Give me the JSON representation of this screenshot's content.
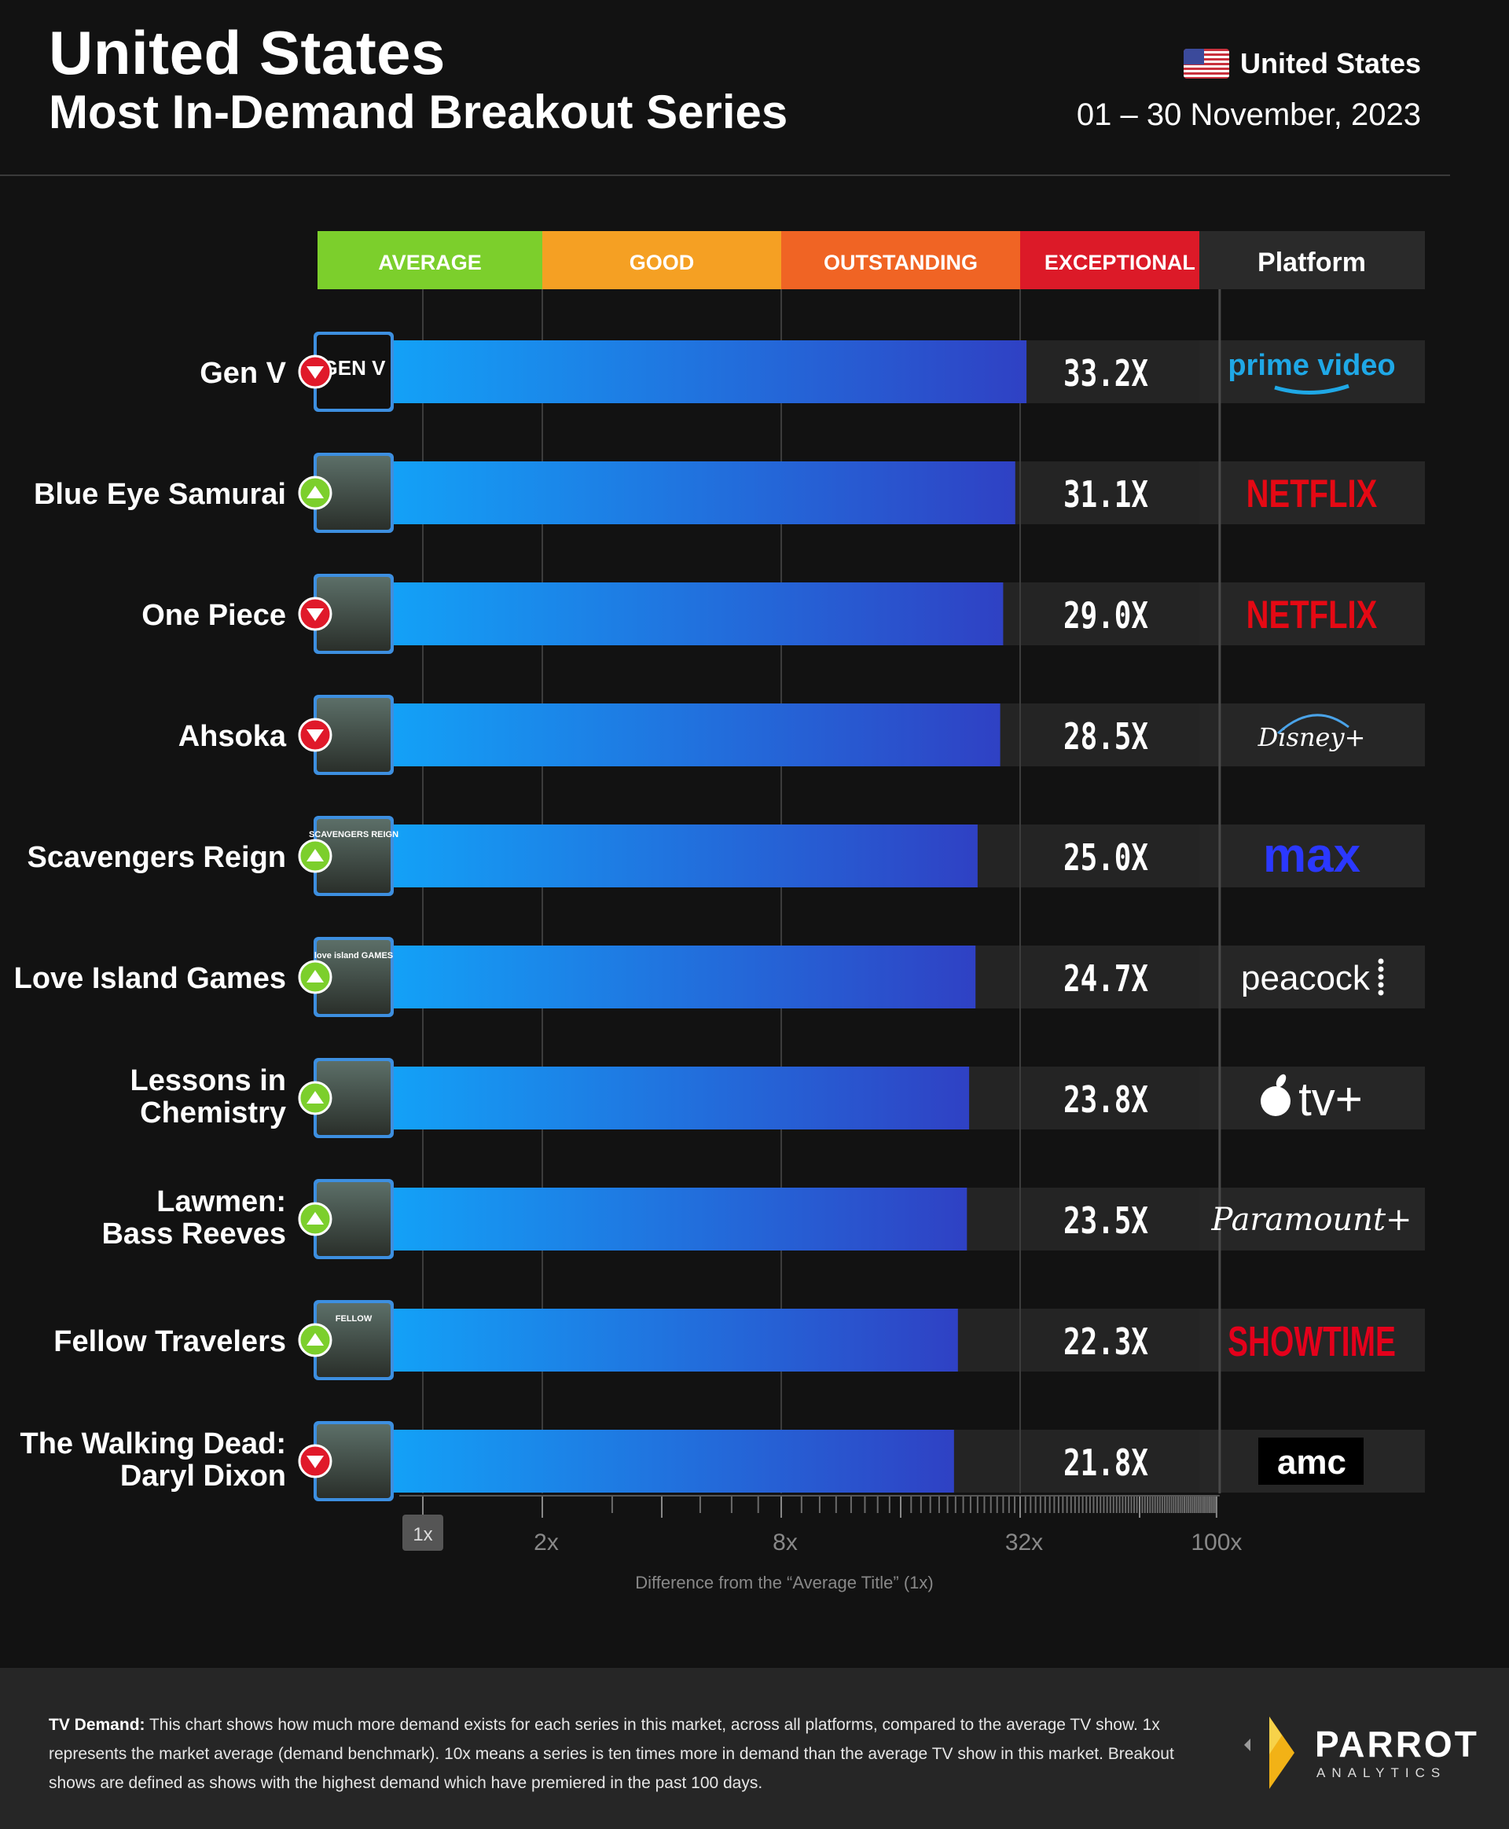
{
  "header": {
    "title": "United States",
    "subtitle": "Most In-Demand Breakout Series",
    "country": "United States",
    "date_range": "01 – 30 November, 2023"
  },
  "tiers": [
    {
      "label": "AVERAGE",
      "color": "#7ccf2c"
    },
    {
      "label": "GOOD",
      "color": "#f5a023"
    },
    {
      "label": "OUTSTANDING",
      "color": "#f06424"
    },
    {
      "label": "EXCEPTIONAL",
      "color": "#dc1a28"
    }
  ],
  "platform_header": "Platform",
  "chart_data": {
    "type": "bar",
    "orientation": "horizontal",
    "x_scale": "log",
    "xlim": [
      1,
      100
    ],
    "xticks": [
      "1x",
      "2x",
      "8x",
      "32x",
      "100x"
    ],
    "xlabel": "Difference from the “Average Title” (1x)",
    "categories": [
      "Gen V",
      "Blue Eye Samurai",
      "One Piece",
      "Ahsoka",
      "Scavengers Reign",
      "Love Island Games",
      "Lessons in Chemistry",
      "Lawmen: Bass Reeves",
      "Fellow Travelers",
      "The Walking Dead: Daryl Dixon"
    ],
    "values": [
      33.2,
      31.1,
      29.0,
      28.5,
      25.0,
      24.7,
      23.8,
      23.5,
      22.3,
      21.8
    ],
    "value_labels": [
      "33.2X",
      "31.1X",
      "29.0X",
      "28.5X",
      "25.0X",
      "24.7X",
      "23.8X",
      "23.5X",
      "22.3X",
      "21.8X"
    ],
    "trend": [
      "down",
      "up",
      "down",
      "down",
      "up",
      "up",
      "up",
      "up",
      "up",
      "down"
    ],
    "platforms": [
      "prime video",
      "NETFLIX",
      "NETFLIX",
      "Disney+",
      "max",
      "peacock",
      "tv+",
      "Paramount+",
      "SHOWTIME",
      "amc"
    ],
    "thumb_text": [
      "GEN V",
      "",
      "",
      "",
      "SCAVENGERS REIGN",
      "love island GAMES",
      "",
      "",
      "FELLOW",
      ""
    ],
    "bar_gradient": [
      "#13a1f7",
      "#2f41c4"
    ],
    "trend_colors": {
      "up": "#7ccf2c",
      "down": "#e0192a"
    }
  },
  "footer": {
    "lead": "TV Demand:",
    "text": "This chart shows how much more demand exists for each series in this market, across all platforms, compared to the average TV show. 1x represents the market average (demand benchmark). 10x means a series is ten times more in demand than the average TV show in this market. Breakout shows are defined as shows with the highest demand which have premiered in the past 100 days.",
    "brand": "PARROT",
    "brand_sub": "ANALYTICS"
  }
}
